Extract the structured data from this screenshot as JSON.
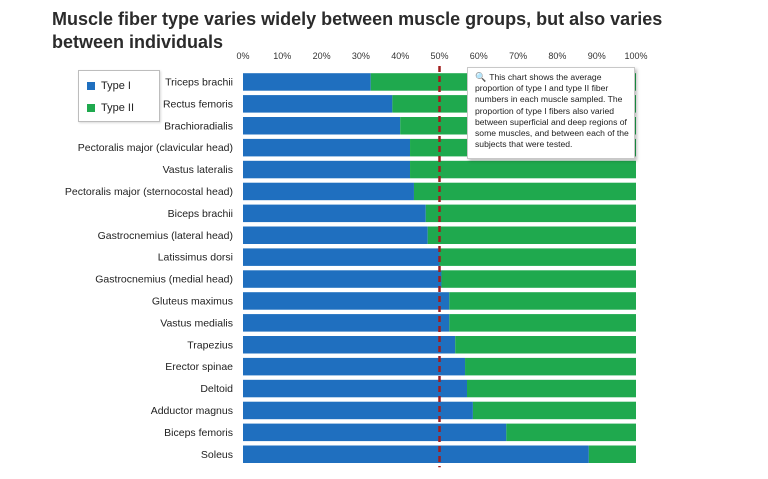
{
  "title": "Muscle fiber type varies widely between muscle groups, but also varies between individuals",
  "note": {
    "icon": "magnifier-icon",
    "text": "This chart shows the average proportion of type I and type II fiber numbers in each muscle sampled. The proportion of type I fibers also varied between superficial and deep regions of some muscles, and between each of the subjects that were tested."
  },
  "colors": {
    "type1": "#1f6fbf",
    "type2": "#1fa94e",
    "reference_line": "#a11d1d"
  },
  "chart_data": {
    "type": "bar",
    "orientation": "horizontal",
    "stacked": "percent",
    "categories": [
      "Triceps brachii",
      "Rectus femoris",
      "Brachioradialis",
      "Pectoralis major (clavicular head)",
      "Vastus lateralis",
      "Pectoralis major (sternocostal head)",
      "Biceps brachii",
      "Gastrocnemius (lateral head)",
      "Latissimus dorsi",
      "Gastrocnemius (medial head)",
      "Gluteus maximus",
      "Vastus medialis",
      "Trapezius",
      "Erector spinae",
      "Deltoid",
      "Adductor magnus",
      "Biceps femoris",
      "Soleus"
    ],
    "series": [
      {
        "name": "Type I",
        "values": [
          32.5,
          38,
          40,
          42.5,
          42.5,
          43.5,
          46.5,
          47,
          50,
          50.5,
          52.5,
          52.5,
          54,
          56.5,
          57,
          58.5,
          67,
          88
        ]
      },
      {
        "name": "Type II",
        "values": [
          67.5,
          62,
          60,
          57.5,
          57.5,
          56.5,
          53.5,
          53,
          50,
          49.5,
          47.5,
          47.5,
          46,
          43.5,
          43,
          41.5,
          33,
          12
        ]
      }
    ],
    "xlim": [
      0,
      100
    ],
    "x_ticks": [
      "0%",
      "10%",
      "20%",
      "30%",
      "40%",
      "50%",
      "60%",
      "70%",
      "80%",
      "90%",
      "100%"
    ],
    "x_tick_values": [
      0,
      10,
      20,
      30,
      40,
      50,
      60,
      70,
      80,
      90,
      100
    ],
    "x_axis_position": "top",
    "reference_line": {
      "x": 50,
      "style": "dashed"
    },
    "legend": {
      "position": "top-left",
      "entries": [
        "Type I",
        "Type II"
      ]
    },
    "grid": false
  }
}
